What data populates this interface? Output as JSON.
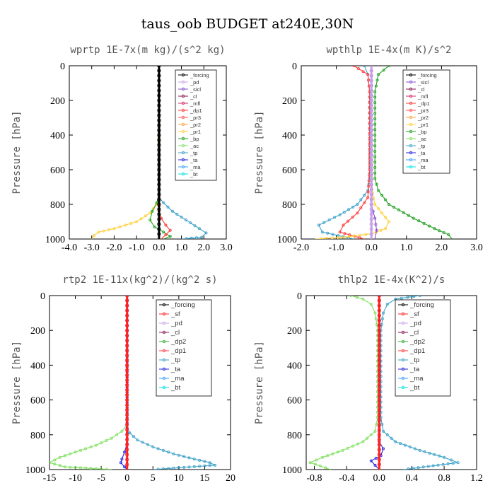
{
  "figure": {
    "title": "taus_oob  BUDGET at240E,30N"
  },
  "colors": {
    "forcing": "#000000",
    "pd": "#c8a0e8",
    "sicl": "#8a4fd0",
    "cl": "#8a1550",
    "mfl": "#d42a6a",
    "dp1": "#ff3a3a",
    "pr3": "#ff5050",
    "pr2": "#ffa040",
    "pr1": "#ffd040",
    "bp": "#20a020",
    "ac": "#80e060",
    "tp": "#3aa0c8",
    "ta": "#2020e0",
    "ma": "#40a0ff",
    "bt": "#00e0e0",
    "sf": "#ff2020",
    "dp2": "#30b030"
  },
  "chart_data": [
    {
      "type": "line",
      "title": "wprtp  1E-7x(m kg)/(s^2 kg)",
      "ylabel": "Pressure [hPa]",
      "xlim": [
        -4.0,
        3.0
      ],
      "ylim": [
        1000,
        0
      ],
      "xticks": [
        "-4.0",
        "-3.0",
        "-2.0",
        "-1.0",
        "0.0",
        "1.0",
        "2.0",
        "3.0"
      ],
      "yticks": [
        "0",
        "200",
        "400",
        "600",
        "800",
        "1000"
      ],
      "legend_position": "top-right",
      "legend": [
        "_forcing",
        "_pd",
        "_sicl",
        "_cl",
        "_mfl",
        "_dp1",
        "_pr3",
        "_pr2",
        "_pr1",
        "_bp",
        "_ac",
        "_tp",
        "_ta",
        "_ma",
        "_bt"
      ],
      "series": [
        {
          "name": "_pr1",
          "color_key": "pr1",
          "x": [
            0,
            0,
            -0.1,
            -0.4,
            -1.0,
            -2.0,
            -2.7,
            -2.9,
            -3.0
          ],
          "y": [
            0,
            760,
            800,
            850,
            900,
            940,
            960,
            980,
            1000
          ]
        },
        {
          "name": "_tp",
          "color_key": "tp",
          "x": [
            0,
            0,
            0.2,
            0.6,
            1.2,
            1.8,
            2.1,
            1.9,
            1.0
          ],
          "y": [
            0,
            760,
            790,
            840,
            890,
            940,
            965,
            990,
            1000
          ]
        },
        {
          "name": "_bp",
          "color_key": "bp",
          "x": [
            0,
            0,
            -0.1,
            -0.3,
            -0.4,
            -0.2,
            0.2,
            0.5,
            0.2
          ],
          "y": [
            0,
            740,
            790,
            840,
            890,
            930,
            960,
            985,
            1000
          ]
        },
        {
          "name": "_dp1",
          "color_key": "dp1",
          "x": [
            0,
            0,
            0.1,
            0.3,
            0.5,
            0.3,
            0.1
          ],
          "y": [
            0,
            840,
            880,
            920,
            950,
            975,
            1000
          ]
        },
        {
          "name": "_forcing",
          "color_key": "forcing",
          "x": [
            0,
            0
          ],
          "y": [
            0,
            1000
          ]
        }
      ]
    },
    {
      "type": "line",
      "title": "wpthlp  1E-4x(m K)/s^2",
      "ylabel": "Pressure [hPa]",
      "xlim": [
        -2.0,
        3.0
      ],
      "ylim": [
        1000,
        0
      ],
      "xticks": [
        "-2.0",
        "-1.0",
        "0.0",
        "1.0",
        "2.0",
        "3.0"
      ],
      "yticks": [
        "0",
        "200",
        "400",
        "600",
        "800",
        "1000"
      ],
      "legend_position": "top-right",
      "legend": [
        "_forcing",
        "_sicl",
        "_cl",
        "_mfl",
        "_dp1",
        "_pr3",
        "_pr2",
        "_pr1",
        "_bp",
        "_ac",
        "_tp",
        "_ta",
        "_ma",
        "_bt"
      ],
      "series": [
        {
          "name": "_bp",
          "color_key": "bp",
          "x": [
            0.5,
            0.2,
            0.1,
            0.1,
            0.1,
            0.2,
            0.5,
            1.2,
            1.8,
            2.2,
            2.3
          ],
          "y": [
            0,
            50,
            150,
            400,
            650,
            720,
            800,
            880,
            940,
            975,
            1000
          ]
        },
        {
          "name": "_tp",
          "color_key": "tp",
          "x": [
            -0.2,
            -0.1,
            -0.05,
            -0.05,
            -0.05,
            -0.1,
            -0.4,
            -0.9,
            -1.5,
            -1.4,
            -0.5
          ],
          "y": [
            0,
            50,
            150,
            400,
            650,
            720,
            800,
            860,
            920,
            960,
            1000
          ]
        },
        {
          "name": "_dp1",
          "color_key": "dp1",
          "x": [
            -0.5,
            -0.1,
            -0.05,
            -0.05,
            -0.1,
            -0.4,
            -0.8,
            -0.9,
            -0.2
          ],
          "y": [
            0,
            50,
            150,
            600,
            760,
            850,
            920,
            960,
            1000
          ]
        },
        {
          "name": "_pr1",
          "color_key": "pr1",
          "x": [
            0,
            0,
            0.1,
            0.3,
            0.5,
            0.4,
            0.0,
            -0.8,
            -1.6
          ],
          "y": [
            0,
            700,
            800,
            850,
            900,
            940,
            970,
            990,
            1000
          ]
        },
        {
          "name": "_sicl",
          "color_key": "sicl",
          "x": [
            0,
            0,
            0.1,
            0.15,
            0.1
          ],
          "y": [
            0,
            800,
            880,
            950,
            1000
          ]
        },
        {
          "name": "_forcing",
          "color_key": "pd",
          "x": [
            0,
            0
          ],
          "y": [
            0,
            1000
          ]
        }
      ]
    },
    {
      "type": "line",
      "title": "rtp2  1E-11x(kg^2)/(kg^2 s)",
      "ylabel": "Pressure [hPa]",
      "xlim": [
        -15,
        20
      ],
      "ylim": [
        1000,
        0
      ],
      "xticks": [
        "-15",
        "-10",
        "-5",
        "0",
        "5",
        "10",
        "15",
        "20"
      ],
      "yticks": [
        "0",
        "200",
        "400",
        "600",
        "800",
        "1000"
      ],
      "legend_position": "top-right",
      "legend": [
        "_forcing",
        "_sf",
        "_pd",
        "_cl",
        "_dp2",
        "_dp1",
        "_tp",
        "_ta",
        "_ma",
        "_bt"
      ],
      "series": [
        {
          "name": "_dp1",
          "color_key": "ac",
          "x": [
            0,
            0,
            -1,
            -3,
            -6,
            -10,
            -13,
            -15,
            -12,
            -3
          ],
          "y": [
            0,
            740,
            780,
            820,
            860,
            900,
            930,
            960,
            985,
            1000
          ]
        },
        {
          "name": "_tp",
          "color_key": "tp",
          "x": [
            0,
            0,
            0.5,
            2,
            5,
            9,
            13,
            16,
            17,
            5
          ],
          "y": [
            0,
            760,
            790,
            830,
            870,
            910,
            940,
            960,
            975,
            1000
          ]
        },
        {
          "name": "_ta",
          "color_key": "ta",
          "x": [
            0,
            0,
            -0.5,
            -1,
            -1.2,
            -0.5,
            0
          ],
          "y": [
            0,
            850,
            900,
            940,
            960,
            985,
            1000
          ]
        },
        {
          "name": "_forcing",
          "color_key": "sf",
          "x": [
            0,
            0
          ],
          "y": [
            0,
            1000
          ]
        }
      ]
    },
    {
      "type": "line",
      "title": "thlp2  1E-4x(K^2)/s",
      "ylabel": "Pressure [hPa]",
      "xlim": [
        -0.9,
        1.2
      ],
      "ylim": [
        1000,
        0
      ],
      "xticks": [
        "-0.8",
        "-0.4",
        "0.0",
        "0.4",
        "0.8",
        "1.2"
      ],
      "yticks": [
        "0",
        "200",
        "400",
        "600",
        "800",
        "1000"
      ],
      "legend_position": "top-right",
      "legend": [
        "_forcing",
        "_sf",
        "_pd",
        "_cl",
        "_dp2",
        "_dp1",
        "_tp",
        "_ta",
        "_ma",
        "_bt"
      ],
      "series": [
        {
          "name": "_dp1",
          "color_key": "ac",
          "x": [
            -0.35,
            -0.2,
            -0.1,
            -0.05,
            -0.02,
            -0.02,
            -0.05,
            -0.2,
            -0.45,
            -0.7,
            -0.85,
            -0.6
          ],
          "y": [
            0,
            20,
            50,
            100,
            200,
            700,
            780,
            840,
            890,
            930,
            960,
            1000
          ]
        },
        {
          "name": "_tp",
          "color_key": "tp",
          "x": [
            0.5,
            0.2,
            0.1,
            0.05,
            0.02,
            0.02,
            0.05,
            0.2,
            0.5,
            0.8,
            0.97,
            0.3
          ],
          "y": [
            0,
            20,
            50,
            100,
            200,
            700,
            780,
            840,
            890,
            930,
            960,
            1000
          ]
        },
        {
          "name": "_ta",
          "color_key": "ta",
          "x": [
            0,
            0,
            0.05,
            0.02,
            -0.1,
            -0.05,
            0
          ],
          "y": [
            0,
            840,
            880,
            920,
            950,
            975,
            1000
          ]
        },
        {
          "name": "_forcing",
          "color_key": "sf",
          "x": [
            0,
            0
          ],
          "y": [
            0,
            1000
          ]
        }
      ]
    }
  ]
}
